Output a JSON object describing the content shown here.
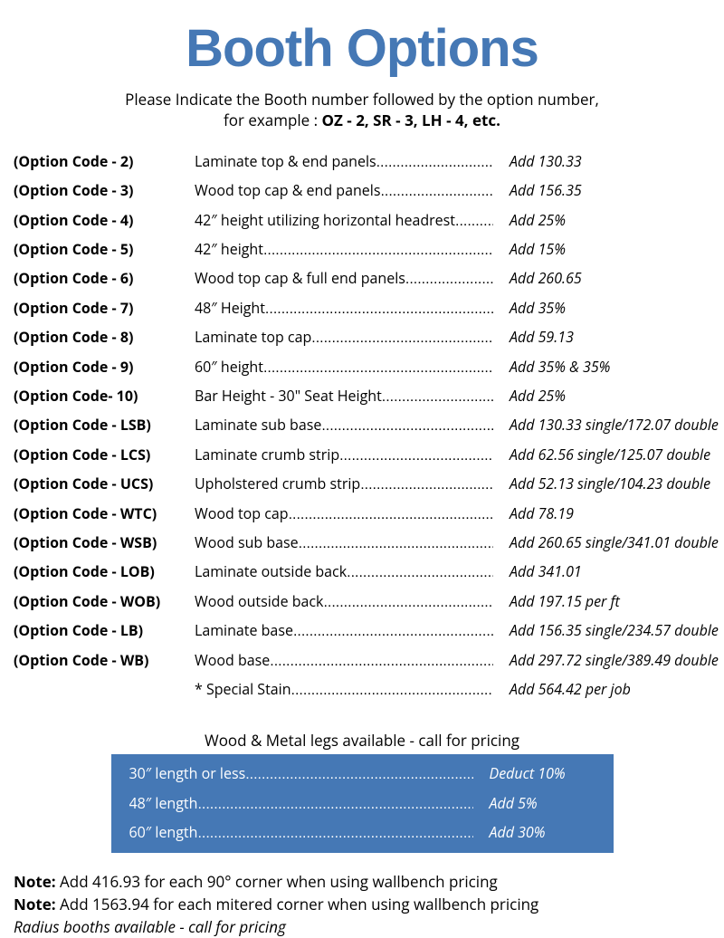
{
  "title": "Booth Options",
  "subtitle_line1": "Please Indicate the Booth number followed by the option number,",
  "subtitle_line2_prefix": "for example : ",
  "subtitle_line2_bold": "OZ - 2, SR - 3, LH - 4, etc.",
  "options": [
    {
      "code": "(Option Code - 2)",
      "desc": "Laminate top & end panels",
      "price": "Add 130.33"
    },
    {
      "code": "(Option Code - 3)",
      "desc": "Wood top cap & end panels",
      "price": "Add 156.35"
    },
    {
      "code": "(Option Code - 4)",
      "desc": "42″ height utilizing horizontal headrest",
      "price": "Add 25%"
    },
    {
      "code": "(Option Code - 5)",
      "desc": "42″ height",
      "price": "Add 15%"
    },
    {
      "code": "(Option Code - 6)",
      "desc": "Wood top cap & full end panels",
      "price": "Add 260.65"
    },
    {
      "code": "(Option Code - 7)",
      "desc": "48″ Height",
      "price": "Add 35%"
    },
    {
      "code": "(Option Code - 8)",
      "desc": "Laminate top cap",
      "price": "Add 59.13"
    },
    {
      "code": "(Option Code - 9)",
      "desc": "60″ height",
      "price": "Add 35% & 35%"
    },
    {
      "code": "(Option Code- 10)",
      "desc": "Bar Height - 30\" Seat Height",
      "price": "Add 25%"
    },
    {
      "code": "(Option Code - LSB)",
      "desc": "Laminate sub base",
      "price": "Add 130.33 single/172.07 double"
    },
    {
      "code": "(Option Code - LCS)",
      "desc": "Laminate crumb strip",
      "price": "Add 62.56 single/125.07 double"
    },
    {
      "code": "(Option Code - UCS)",
      "desc": "Upholstered crumb strip",
      "price": "Add 52.13 single/104.23 double"
    },
    {
      "code": "(Option Code - WTC)",
      "desc": "Wood top cap",
      "price": "Add 78.19"
    },
    {
      "code": "(Option Code - WSB)",
      "desc": "Wood sub base",
      "price": "Add 260.65 single/341.01 double"
    },
    {
      "code": "(Option Code - LOB)",
      "desc": "Laminate outside back",
      "price": "Add 341.01"
    },
    {
      "code": "(Option Code - WOB)",
      "desc": "Wood outside back ",
      "price": "Add 197.15 per ft"
    },
    {
      "code": "(Option Code - LB)",
      "desc": "Laminate base",
      "price": "Add 156.35 single/234.57 double"
    },
    {
      "code": "(Option Code - WB)",
      "desc": "Wood base",
      "price": "Add 297.72 single/389.49 double"
    },
    {
      "code": "",
      "desc": "* Special Stain",
      "price": "Add 564.42 per job"
    }
  ],
  "legs_title": "Wood & Metal legs available - call for pricing",
  "legs": [
    {
      "desc": "30″ length or less",
      "price": "Deduct 10%"
    },
    {
      "desc": "48″ length",
      "price": "Add 5%"
    },
    {
      "desc": "60″ length",
      "price": "Add 30%"
    }
  ],
  "note1_label": "Note:",
  "note1_text": " Add 416.93 for each 90° corner when using wallbench pricing",
  "note2_label": "Note:",
  "note2_text": " Add 1563.94 for each mitered corner when using wallbench pricing",
  "note3_text": "Radius booths available - call for pricing",
  "colors": {
    "title": "#4578b5",
    "box_bg": "#4578b5",
    "box_text": "#ffffff",
    "body_text": "#000000",
    "page_bg": "#ffffff"
  },
  "typography": {
    "title_fontsize": 58,
    "subtitle_fontsize": 17,
    "row_fontsize": 16,
    "notes_fontsize": 17
  }
}
